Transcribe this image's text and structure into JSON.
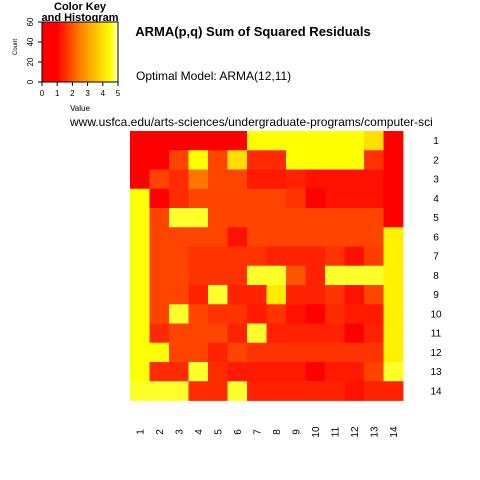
{
  "chart_data": {
    "type": "heatmap",
    "title": "ARMA(p,q) Sum of Squared Residuals",
    "subtitle": "Optimal Model: ARMA(12,11)",
    "source_text": "www.usfca.edu/arts-sciences/undergraduate-programs/computer-sci",
    "row_labels": [
      "1",
      "2",
      "3",
      "4",
      "5",
      "6",
      "7",
      "8",
      "9",
      "10",
      "11",
      "12",
      "13",
      "14"
    ],
    "col_labels": [
      "1",
      "2",
      "3",
      "4",
      "5",
      "6",
      "7",
      "8",
      "9",
      "10",
      "11",
      "12",
      "13",
      "14"
    ],
    "values": [
      [
        0.2,
        0.2,
        0.2,
        0.2,
        0.2,
        0.2,
        4.5,
        4.5,
        4.5,
        4.5,
        4.5,
        4.5,
        4.0,
        0.2
      ],
      [
        0.3,
        0.3,
        1.8,
        4.5,
        1.8,
        4.0,
        1.5,
        1.5,
        4.5,
        4.5,
        4.5,
        4.5,
        1.6,
        0.2
      ],
      [
        0.4,
        1.8,
        1.5,
        2.4,
        1.8,
        1.8,
        1.3,
        1.3,
        1.4,
        1.2,
        1.2,
        1.2,
        1.2,
        0.2
      ],
      [
        4.5,
        0.6,
        1.5,
        1.8,
        1.8,
        1.8,
        1.8,
        1.8,
        1.6,
        1.0,
        1.2,
        1.2,
        1.2,
        0.2
      ],
      [
        4.5,
        1.8,
        4.6,
        4.6,
        1.8,
        1.8,
        1.8,
        1.8,
        1.8,
        1.8,
        1.8,
        1.8,
        1.8,
        0.2
      ],
      [
        4.5,
        1.8,
        1.8,
        1.8,
        1.8,
        1.2,
        1.8,
        1.8,
        1.8,
        1.8,
        1.8,
        1.8,
        1.8,
        4.3
      ],
      [
        4.5,
        1.8,
        1.8,
        1.6,
        1.6,
        1.6,
        1.6,
        1.4,
        1.4,
        1.4,
        1.6,
        1.2,
        1.7,
        4.3
      ],
      [
        4.5,
        1.8,
        1.8,
        1.6,
        1.6,
        1.6,
        4.6,
        4.6,
        2.0,
        1.4,
        4.6,
        4.6,
        4.6,
        4.3
      ],
      [
        4.5,
        1.8,
        1.8,
        1.4,
        4.6,
        1.4,
        1.4,
        4.2,
        1.4,
        1.4,
        1.6,
        1.2,
        1.8,
        4.3
      ],
      [
        4.5,
        1.8,
        4.6,
        1.8,
        1.6,
        1.6,
        1.3,
        1.6,
        1.2,
        0.9,
        1.5,
        1.3,
        1.3,
        4.3
      ],
      [
        4.5,
        1.5,
        1.8,
        1.8,
        1.8,
        1.4,
        4.6,
        1.4,
        1.4,
        1.4,
        1.4,
        1.0,
        1.4,
        4.3
      ],
      [
        4.5,
        4.5,
        1.8,
        1.8,
        1.4,
        1.8,
        1.6,
        1.6,
        1.6,
        1.6,
        1.6,
        1.6,
        1.6,
        4.3
      ],
      [
        4.5,
        1.5,
        1.5,
        4.6,
        1.5,
        1.3,
        1.3,
        1.3,
        1.3,
        1.0,
        1.3,
        1.3,
        1.8,
        4.6
      ],
      [
        4.6,
        4.6,
        4.6,
        1.5,
        1.5,
        4.6,
        1.4,
        1.4,
        1.4,
        1.4,
        1.4,
        1.2,
        1.4,
        1.4
      ]
    ],
    "color_key": {
      "title_line1": "Color Key",
      "title_line2": "and Histogram",
      "xlabel": "Value",
      "ylabel": "Count",
      "x_ticks": [
        "0",
        "1",
        "2",
        "3",
        "4",
        "5"
      ],
      "y_ticks": [
        "0",
        "20",
        "40",
        "60"
      ],
      "range": [
        0,
        5
      ],
      "low_color": "#ff0000",
      "mid_color": "#ff8000",
      "high_color": "#ffff00",
      "pale_color": "#ffffcc"
    }
  }
}
